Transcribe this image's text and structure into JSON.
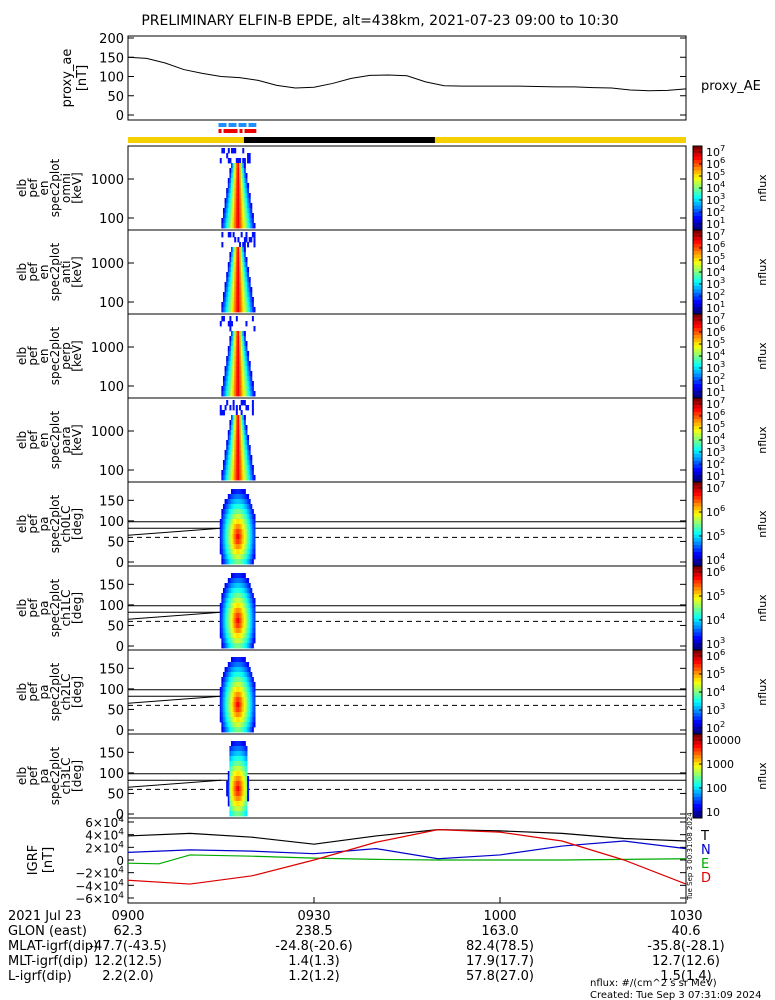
{
  "title": "PRELIMINARY ELFIN-B EPDE, alt=438km, 2021-07-23 09:00 to 10:30",
  "colors": {
    "sunlit": "#f5d000",
    "shadow": "#000000",
    "blue_bar": "#1f8fff",
    "red_bar": "#ee0000"
  },
  "chart_data": [
    {
      "type": "line",
      "ylabel": [
        "proxy_ae",
        "[nT]"
      ],
      "yticks": [
        "200",
        "150",
        "100",
        "50",
        "0"
      ],
      "ylim": [
        0,
        200
      ],
      "series": [
        {
          "name": "proxy_AE",
          "x": [
            0,
            3,
            6,
            9,
            12,
            15,
            18,
            21,
            24,
            27,
            30,
            33,
            36,
            39,
            42,
            45,
            48,
            51,
            54,
            57,
            60,
            63,
            66,
            69,
            72,
            75,
            78,
            81,
            84,
            87,
            90
          ],
          "values": [
            150,
            147,
            135,
            118,
            108,
            100,
            97,
            90,
            77,
            70,
            72,
            82,
            95,
            103,
            104,
            102,
            86,
            76,
            75,
            75,
            75,
            75,
            74,
            73,
            73,
            71,
            70,
            65,
            63,
            64,
            68
          ]
        }
      ]
    },
    {
      "type": "heatmap",
      "panels": [
        {
          "label": [
            "elb",
            "pef",
            "en",
            "spec2plot",
            "omni",
            "[keV]"
          ],
          "yticks": [
            "1000",
            "100"
          ],
          "kind": "energy",
          "cb_ticks": [
            "10^7",
            "10^6",
            "10^5",
            "10^4",
            "10^3",
            "10^2",
            "10^1"
          ],
          "cb_label": "nflux"
        },
        {
          "label": [
            "elb",
            "pef",
            "en",
            "spec2plot",
            "anti",
            "[keV]"
          ],
          "yticks": [
            "1000",
            "100"
          ],
          "kind": "energy",
          "cb_ticks": [
            "10^7",
            "10^6",
            "10^5",
            "10^4",
            "10^3",
            "10^2",
            "10^1"
          ],
          "cb_label": "nflux"
        },
        {
          "label": [
            "elb",
            "pef",
            "en",
            "spec2plot",
            "perp",
            "[keV]"
          ],
          "yticks": [
            "1000",
            "100"
          ],
          "kind": "energy",
          "cb_ticks": [
            "10^7",
            "10^6",
            "10^5",
            "10^4",
            "10^3",
            "10^2",
            "10^1"
          ],
          "cb_label": "nflux"
        },
        {
          "label": [
            "elb",
            "pef",
            "en",
            "spec2plot",
            "para",
            "[keV]"
          ],
          "yticks": [
            "1000",
            "100"
          ],
          "kind": "energy",
          "cb_ticks": [
            "10^7",
            "10^6",
            "10^5",
            "10^4",
            "10^3",
            "10^2",
            "10^1"
          ],
          "cb_label": "nflux"
        },
        {
          "label": [
            "elb",
            "pef",
            "pa",
            "spec2plot",
            "ch0LC",
            "[deg]"
          ],
          "yticks": [
            "150",
            "100",
            "50",
            "0"
          ],
          "kind": "pitch",
          "cb_ticks": [
            "10^7",
            "10^6",
            "10^5",
            "10^4"
          ],
          "cb_label": "nflux"
        },
        {
          "label": [
            "elb",
            "pef",
            "pa",
            "spec2plot",
            "ch1LC",
            "[deg]"
          ],
          "yticks": [
            "150",
            "100",
            "50",
            "0"
          ],
          "kind": "pitch",
          "cb_ticks": [
            "10^6",
            "10^5",
            "10^4",
            "10^3"
          ],
          "cb_label": "nflux"
        },
        {
          "label": [
            "elb",
            "pef",
            "pa",
            "spec2plot",
            "ch2LC",
            "[deg]"
          ],
          "yticks": [
            "150",
            "100",
            "50",
            "0"
          ],
          "kind": "pitch",
          "cb_ticks": [
            "10^6",
            "10^5",
            "10^4",
            "10^3",
            "10^2"
          ],
          "cb_label": "nflux"
        },
        {
          "label": [
            "elb",
            "pef",
            "pa",
            "spec2plot",
            "ch3LC",
            "[deg]"
          ],
          "yticks": [
            "150",
            "100",
            "50",
            "0"
          ],
          "kind": "pitch",
          "cb_ticks": [
            "10000",
            "1000",
            "100",
            "10"
          ],
          "cb_label": "nflux"
        }
      ]
    },
    {
      "type": "line",
      "ylabel": [
        "IGRF",
        "[nT]"
      ],
      "yticks": [
        "6×10^4",
        "4×10^4",
        "2×10^4",
        "0",
        "−2×10^4",
        "−4×10^4",
        "−6×10^4"
      ],
      "ylim": [
        -60000,
        60000
      ],
      "series": [
        {
          "name": "T",
          "color": "#000000",
          "x": [
            0,
            10,
            20,
            30,
            40,
            50,
            60,
            70,
            80,
            90
          ],
          "values": [
            38000,
            42000,
            36000,
            25000,
            38000,
            48000,
            46000,
            42000,
            34000,
            30000
          ]
        },
        {
          "name": "N",
          "color": "#0000cc",
          "x": [
            0,
            10,
            20,
            30,
            40,
            50,
            60,
            70,
            80,
            90
          ],
          "values": [
            12000,
            16000,
            14000,
            10000,
            18000,
            2000,
            8000,
            22000,
            30000,
            18000
          ]
        },
        {
          "name": "E",
          "color": "#00aa00",
          "x": [
            0,
            5,
            10,
            20,
            30,
            40,
            50,
            60,
            70,
            80,
            90
          ],
          "values": [
            -5000,
            -6000,
            8000,
            6000,
            3000,
            1000,
            0,
            0,
            0,
            1000,
            2000
          ]
        },
        {
          "name": "D",
          "color": "#dd0000",
          "x": [
            0,
            10,
            20,
            30,
            40,
            50,
            60,
            70,
            80,
            90
          ],
          "values": [
            -32000,
            -38000,
            -25000,
            0,
            28000,
            48000,
            44000,
            30000,
            0,
            -38000
          ]
        }
      ],
      "side_text": "Tue Sep  3 00:31:08 2024"
    }
  ],
  "xaxis": {
    "tick_labels": [
      "0900",
      "0930",
      "1000",
      "1030"
    ],
    "date": "2021 Jul 23",
    "rows": [
      {
        "label": "GLON (east)",
        "values": [
          "62.3",
          "238.5",
          "163.0",
          "40.6"
        ]
      },
      {
        "label": "MLAT-igrf(dip)",
        "values": [
          "-47.7(-43.5)",
          "-24.8(-20.6)",
          "82.4(78.5)",
          "-35.8(-28.1)"
        ]
      },
      {
        "label": "MLT-igrf(dip)",
        "values": [
          "12.2(12.5)",
          "1.4(1.3)",
          "17.9(17.7)",
          "12.7(12.6)"
        ]
      },
      {
        "label": "L-igrf(dip)",
        "values": [
          "2.2(2.0)",
          "1.2(1.2)",
          "57.8(27.0)",
          "1.5(1.4)"
        ]
      }
    ]
  },
  "footer": {
    "units": "nflux: #/(cm^2 s sr MeV)",
    "created": "Created: Tue Sep  3 07:31:09 2024"
  }
}
